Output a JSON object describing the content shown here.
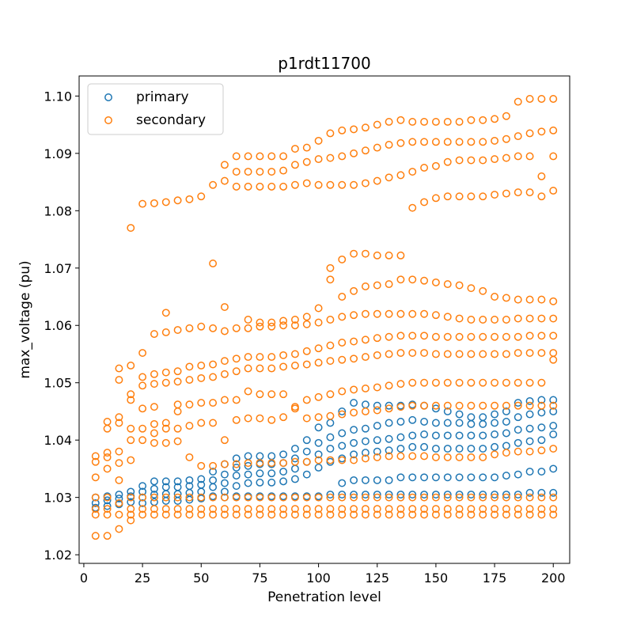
{
  "chart_data": {
    "type": "scatter",
    "title": "p1rdt11700",
    "xlabel": "Penetration level",
    "ylabel": "max_voltage (pu)",
    "xlim": [
      -2,
      207
    ],
    "ylim": [
      1.0185,
      1.1035
    ],
    "xticks": [
      0,
      25,
      50,
      75,
      100,
      125,
      150,
      175,
      200
    ],
    "yticks": [
      "1.02",
      "1.03",
      "1.04",
      "1.05",
      "1.06",
      "1.07",
      "1.08",
      "1.09",
      "1.10"
    ],
    "legend_position": "top-left",
    "penetration_levels": [
      5,
      10,
      15,
      20,
      25,
      30,
      35,
      40,
      45,
      50,
      55,
      60,
      65,
      70,
      75,
      80,
      85,
      90,
      95,
      100,
      105,
      110,
      115,
      120,
      125,
      130,
      135,
      140,
      145,
      150,
      155,
      160,
      165,
      170,
      175,
      180,
      185,
      190,
      195,
      200
    ],
    "series": [
      {
        "name": "primary",
        "color": "#1f77b4",
        "values": [
          [
            1.03,
            1.029,
            1.0282
          ],
          [
            1.0302,
            1.0295,
            1.0285
          ],
          [
            1.0305,
            1.0298,
            1.0288
          ],
          [
            1.031,
            1.0302,
            1.0292
          ],
          [
            1.032,
            1.031,
            1.03,
            1.029
          ],
          [
            1.0328,
            1.0315,
            1.0305,
            1.0292
          ],
          [
            1.0328,
            1.0318,
            1.0306,
            1.0294
          ],
          [
            1.0328,
            1.0318,
            1.0306,
            1.0294
          ],
          [
            1.033,
            1.032,
            1.0308,
            1.0296
          ],
          [
            1.0332,
            1.0322,
            1.031,
            1.0298
          ],
          [
            1.0345,
            1.033,
            1.0318,
            1.0302
          ],
          [
            1.0358,
            1.034,
            1.0325,
            1.031,
            1.03
          ],
          [
            1.0368,
            1.0352,
            1.0338,
            1.032,
            1.0302
          ],
          [
            1.0372,
            1.0355,
            1.034,
            1.0325,
            1.0302
          ],
          [
            1.0372,
            1.0358,
            1.0342,
            1.0326,
            1.0302
          ],
          [
            1.0372,
            1.0358,
            1.0342,
            1.0326,
            1.0302
          ],
          [
            1.0375,
            1.036,
            1.0345,
            1.0328,
            1.0302
          ],
          [
            1.0385,
            1.0368,
            1.035,
            1.0332,
            1.0302
          ],
          [
            1.04,
            1.038,
            1.0362,
            1.034,
            1.0302
          ],
          [
            1.0422,
            1.0395,
            1.0375,
            1.0352,
            1.0302
          ],
          [
            1.043,
            1.0405,
            1.0385,
            1.0362,
            1.0305
          ],
          [
            1.045,
            1.0412,
            1.039,
            1.0368,
            1.0325,
            1.0305
          ],
          [
            1.0465,
            1.0418,
            1.0395,
            1.0375,
            1.033,
            1.0305
          ],
          [
            1.0462,
            1.042,
            1.0398,
            1.0378,
            1.033,
            1.0305
          ],
          [
            1.046,
            1.0425,
            1.04,
            1.038,
            1.033,
            1.0305
          ],
          [
            1.046,
            1.043,
            1.0402,
            1.0382,
            1.033,
            1.0305
          ],
          [
            1.046,
            1.0432,
            1.0405,
            1.0385,
            1.0335,
            1.0305
          ],
          [
            1.0462,
            1.0435,
            1.0408,
            1.0388,
            1.0335,
            1.0305
          ],
          [
            1.046,
            1.0432,
            1.041,
            1.0388,
            1.0335,
            1.0305
          ],
          [
            1.0455,
            1.043,
            1.0408,
            1.0385,
            1.0335,
            1.0305
          ],
          [
            1.045,
            1.043,
            1.0408,
            1.0385,
            1.0335,
            1.0305
          ],
          [
            1.0445,
            1.043,
            1.0408,
            1.0385,
            1.0335,
            1.0305
          ],
          [
            1.044,
            1.0428,
            1.0408,
            1.0385,
            1.0335,
            1.0305
          ],
          [
            1.044,
            1.0428,
            1.0408,
            1.0385,
            1.0335,
            1.0305
          ],
          [
            1.0445,
            1.043,
            1.041,
            1.0388,
            1.0335,
            1.0305
          ],
          [
            1.045,
            1.0432,
            1.0412,
            1.039,
            1.0338,
            1.0305
          ],
          [
            1.0465,
            1.044,
            1.0418,
            1.0395,
            1.034,
            1.0305
          ],
          [
            1.0468,
            1.0445,
            1.042,
            1.0398,
            1.0345,
            1.0308
          ],
          [
            1.047,
            1.0448,
            1.0422,
            1.04,
            1.0345,
            1.0308
          ],
          [
            1.047,
            1.045,
            1.0425,
            1.041,
            1.035,
            1.0308
          ]
        ]
      },
      {
        "name": "secondary",
        "color": "#ff7f0e",
        "values": [
          [
            1.0372,
            1.0362,
            1.0335,
            1.03,
            1.028,
            1.027,
            1.0233
          ],
          [
            1.0432,
            1.042,
            1.0378,
            1.037,
            1.035,
            1.03,
            1.028,
            1.027,
            1.0233
          ],
          [
            1.0525,
            1.0505,
            1.044,
            1.043,
            1.038,
            1.036,
            1.033,
            1.029,
            1.027,
            1.0245
          ],
          [
            1.077,
            1.053,
            1.048,
            1.047,
            1.042,
            1.04,
            1.0365,
            1.03,
            1.028,
            1.027,
            1.026
          ],
          [
            1.0812,
            1.0552,
            1.051,
            1.0495,
            1.0455,
            1.042,
            1.04,
            1.03,
            1.028,
            1.027
          ],
          [
            1.0813,
            1.0585,
            1.0515,
            1.0498,
            1.0458,
            1.0428,
            1.0412,
            1.0395,
            1.03,
            1.028,
            1.027
          ],
          [
            1.0815,
            1.0622,
            1.0588,
            1.0518,
            1.05,
            1.043,
            1.042,
            1.0395,
            1.03,
            1.028,
            1.027
          ],
          [
            1.0818,
            1.0592,
            1.052,
            1.0502,
            1.0462,
            1.045,
            1.042,
            1.0398,
            1.03,
            1.028,
            1.027
          ],
          [
            1.082,
            1.0595,
            1.0528,
            1.0505,
            1.0462,
            1.0425,
            1.037,
            1.03,
            1.028,
            1.027
          ],
          [
            1.0825,
            1.0598,
            1.053,
            1.0508,
            1.0465,
            1.043,
            1.0355,
            1.03,
            1.028,
            1.027
          ],
          [
            1.0845,
            1.0708,
            1.0595,
            1.0532,
            1.051,
            1.0465,
            1.043,
            1.0355,
            1.03,
            1.028,
            1.027
          ],
          [
            1.088,
            1.0852,
            1.0632,
            1.059,
            1.0538,
            1.0515,
            1.047,
            1.04,
            1.0358,
            1.03,
            1.028,
            1.027
          ],
          [
            1.0895,
            1.0868,
            1.0842,
            1.0595,
            1.0542,
            1.052,
            1.047,
            1.0435,
            1.0358,
            1.03,
            1.028,
            1.027
          ],
          [
            1.0895,
            1.0868,
            1.0842,
            1.061,
            1.0595,
            1.0545,
            1.0525,
            1.0485,
            1.0438,
            1.036,
            1.03,
            1.028,
            1.027
          ],
          [
            1.0895,
            1.0868,
            1.0842,
            1.0605,
            1.0598,
            1.0545,
            1.0525,
            1.048,
            1.0438,
            1.036,
            1.03,
            1.028,
            1.027
          ],
          [
            1.0895,
            1.0868,
            1.0842,
            1.0605,
            1.0598,
            1.0545,
            1.0525,
            1.048,
            1.0435,
            1.036,
            1.03,
            1.028,
            1.027
          ],
          [
            1.0895,
            1.087,
            1.0842,
            1.0608,
            1.06,
            1.0548,
            1.0528,
            1.048,
            1.044,
            1.036,
            1.03,
            1.028,
            1.027
          ],
          [
            1.0908,
            1.088,
            1.0845,
            1.061,
            1.06,
            1.055,
            1.053,
            1.0458,
            1.0455,
            1.0362,
            1.03,
            1.028,
            1.027
          ],
          [
            1.091,
            1.0885,
            1.0848,
            1.0615,
            1.0602,
            1.0555,
            1.0532,
            1.047,
            1.0438,
            1.0362,
            1.03,
            1.028,
            1.027
          ],
          [
            1.0922,
            1.089,
            1.0845,
            1.063,
            1.0605,
            1.056,
            1.0535,
            1.0475,
            1.044,
            1.0365,
            1.03,
            1.028,
            1.027
          ],
          [
            1.0935,
            1.0892,
            1.0845,
            1.07,
            1.068,
            1.061,
            1.0565,
            1.0538,
            1.048,
            1.0442,
            1.0365,
            1.03,
            1.028,
            1.027
          ],
          [
            1.094,
            1.0895,
            1.0845,
            1.0715,
            1.065,
            1.0615,
            1.057,
            1.054,
            1.0485,
            1.0445,
            1.0365,
            1.03,
            1.028,
            1.027
          ],
          [
            1.0942,
            1.09,
            1.0845,
            1.0725,
            1.066,
            1.0618,
            1.0572,
            1.0542,
            1.0488,
            1.0448,
            1.0365,
            1.03,
            1.028,
            1.027
          ],
          [
            1.0945,
            1.0905,
            1.0848,
            1.0725,
            1.0668,
            1.062,
            1.0575,
            1.0545,
            1.049,
            1.045,
            1.0368,
            1.03,
            1.028,
            1.027
          ],
          [
            1.095,
            1.091,
            1.0852,
            1.0722,
            1.067,
            1.062,
            1.0578,
            1.0548,
            1.0492,
            1.0452,
            1.037,
            1.03,
            1.028,
            1.027
          ],
          [
            1.0955,
            1.0915,
            1.0858,
            1.0722,
            1.0672,
            1.062,
            1.058,
            1.055,
            1.0495,
            1.0455,
            1.0372,
            1.03,
            1.028,
            1.027
          ],
          [
            1.0958,
            1.0918,
            1.0862,
            1.0722,
            1.068,
            1.062,
            1.0582,
            1.0552,
            1.0498,
            1.0458,
            1.0372,
            1.03,
            1.028,
            1.027
          ],
          [
            1.0955,
            1.092,
            1.0868,
            1.0805,
            1.068,
            1.062,
            1.0582,
            1.0552,
            1.05,
            1.046,
            1.0372,
            1.03,
            1.028,
            1.027
          ],
          [
            1.0955,
            1.092,
            1.0875,
            1.0815,
            1.0678,
            1.062,
            1.0582,
            1.0552,
            1.05,
            1.046,
            1.0372,
            1.03,
            1.028,
            1.027
          ],
          [
            1.0955,
            1.092,
            1.0878,
            1.0822,
            1.0675,
            1.0618,
            1.058,
            1.055,
            1.05,
            1.046,
            1.037,
            1.03,
            1.028,
            1.027
          ],
          [
            1.0955,
            1.092,
            1.0885,
            1.0825,
            1.0672,
            1.0615,
            1.058,
            1.055,
            1.05,
            1.046,
            1.037,
            1.03,
            1.028,
            1.027
          ],
          [
            1.0955,
            1.092,
            1.0888,
            1.0825,
            1.067,
            1.0612,
            1.058,
            1.055,
            1.05,
            1.046,
            1.037,
            1.03,
            1.028,
            1.027
          ],
          [
            1.0958,
            1.092,
            1.0888,
            1.0825,
            1.0665,
            1.061,
            1.058,
            1.055,
            1.05,
            1.046,
            1.037,
            1.03,
            1.028,
            1.027
          ],
          [
            1.0958,
            1.092,
            1.0888,
            1.0825,
            1.066,
            1.061,
            1.058,
            1.055,
            1.05,
            1.046,
            1.037,
            1.03,
            1.028,
            1.027
          ],
          [
            1.096,
            1.0922,
            1.089,
            1.0828,
            1.065,
            1.061,
            1.058,
            1.055,
            1.05,
            1.046,
            1.0375,
            1.03,
            1.028,
            1.027
          ],
          [
            1.0965,
            1.0925,
            1.0892,
            1.083,
            1.0648,
            1.061,
            1.058,
            1.055,
            1.05,
            1.046,
            1.0378,
            1.03,
            1.028,
            1.027
          ],
          [
            1.099,
            1.093,
            1.0895,
            1.0832,
            1.0645,
            1.0612,
            1.058,
            1.0552,
            1.05,
            1.046,
            1.038,
            1.03,
            1.028,
            1.027
          ],
          [
            1.0995,
            1.0935,
            1.0895,
            1.0832,
            1.0645,
            1.0612,
            1.0582,
            1.0552,
            1.05,
            1.046,
            1.038,
            1.03,
            1.028,
            1.027
          ],
          [
            1.0995,
            1.0938,
            1.086,
            1.0825,
            1.0645,
            1.0612,
            1.0582,
            1.0552,
            1.05,
            1.046,
            1.0382,
            1.03,
            1.028,
            1.027
          ],
          [
            1.0995,
            1.094,
            1.0895,
            1.0835,
            1.0642,
            1.0612,
            1.0582,
            1.0552,
            1.054,
            1.046,
            1.0385,
            1.03,
            1.028,
            1.027
          ]
        ]
      }
    ]
  }
}
